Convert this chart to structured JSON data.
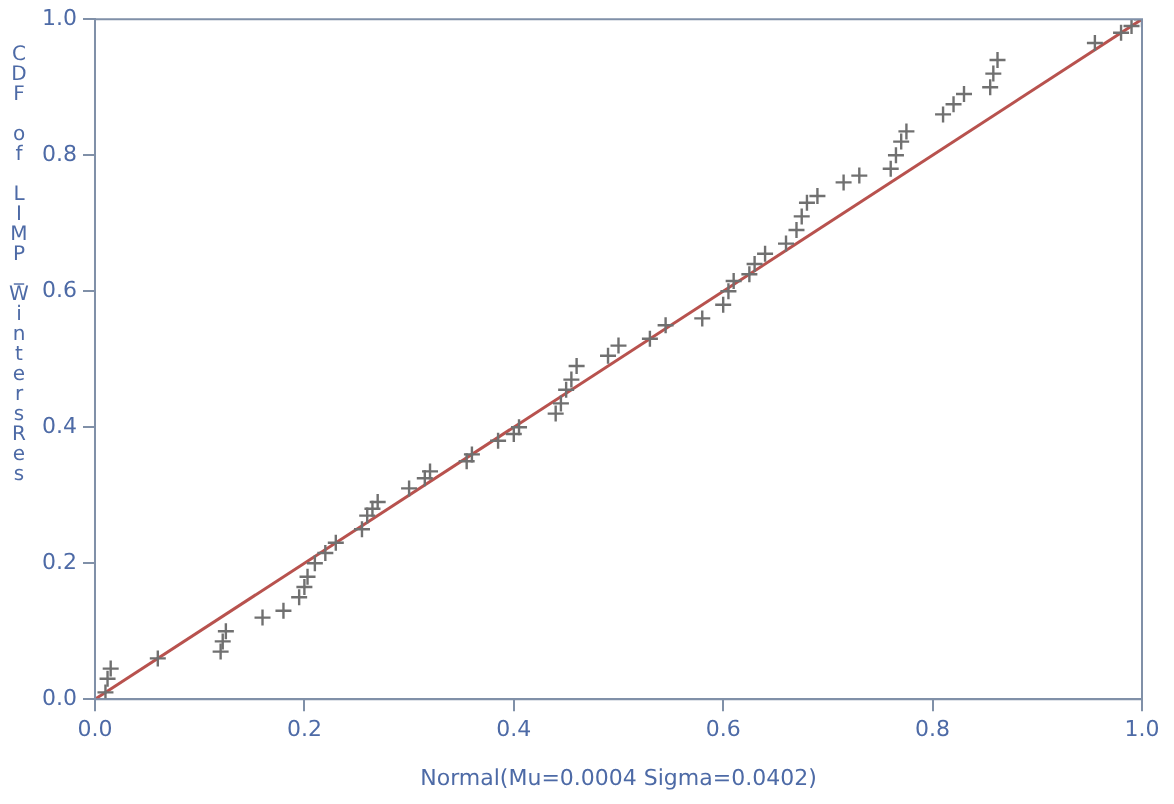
{
  "chart_data": {
    "type": "scatter",
    "xlabel": "Normal(Mu=0.0004 Sigma=0.0402)",
    "ylabel": "CDF of LIMP_WintersRes",
    "xlim": [
      0,
      1
    ],
    "ylim": [
      0,
      1
    ],
    "xticks": [
      {
        "value": 0,
        "label": "0.0"
      },
      {
        "value": 0.2,
        "label": "0.2"
      },
      {
        "value": 0.4,
        "label": "0.4"
      },
      {
        "value": 0.6,
        "label": "0.6"
      },
      {
        "value": 0.8,
        "label": "0.8"
      },
      {
        "value": 1,
        "label": "1.0"
      }
    ],
    "yticks": [
      {
        "value": 0,
        "label": "0.0"
      },
      {
        "value": 0.2,
        "label": "0.2"
      },
      {
        "value": 0.4,
        "label": "0.4"
      },
      {
        "value": 0.6,
        "label": "0.6"
      },
      {
        "value": 0.8,
        "label": "0.8"
      },
      {
        "value": 1,
        "label": "1.0"
      }
    ],
    "grid": false,
    "legend": false,
    "series": [
      {
        "type": "scatter",
        "marker": "cross",
        "color": "#707070",
        "x": [
          0.01,
          0.012,
          0.015,
          0.06,
          0.12,
          0.122,
          0.125,
          0.16,
          0.18,
          0.195,
          0.2,
          0.203,
          0.21,
          0.22,
          0.23,
          0.255,
          0.26,
          0.265,
          0.27,
          0.3,
          0.315,
          0.32,
          0.355,
          0.36,
          0.385,
          0.4,
          0.405,
          0.44,
          0.445,
          0.45,
          0.455,
          0.46,
          0.49,
          0.5,
          0.53,
          0.545,
          0.58,
          0.6,
          0.605,
          0.61,
          0.625,
          0.63,
          0.64,
          0.66,
          0.67,
          0.675,
          0.68,
          0.69,
          0.715,
          0.73,
          0.76,
          0.765,
          0.77,
          0.775,
          0.81,
          0.82,
          0.83,
          0.855,
          0.858,
          0.862,
          0.955,
          0.98,
          0.99,
          1.0
        ],
        "values": [
          0.01,
          0.03,
          0.045,
          0.06,
          0.07,
          0.085,
          0.1,
          0.12,
          0.13,
          0.15,
          0.165,
          0.18,
          0.2,
          0.215,
          0.23,
          0.25,
          0.27,
          0.28,
          0.29,
          0.31,
          0.325,
          0.335,
          0.35,
          0.36,
          0.38,
          0.39,
          0.4,
          0.42,
          0.435,
          0.455,
          0.47,
          0.49,
          0.505,
          0.52,
          0.53,
          0.55,
          0.56,
          0.58,
          0.6,
          0.615,
          0.625,
          0.64,
          0.655,
          0.67,
          0.69,
          0.71,
          0.73,
          0.74,
          0.76,
          0.77,
          0.78,
          0.8,
          0.82,
          0.835,
          0.86,
          0.875,
          0.89,
          0.9,
          0.92,
          0.94,
          0.965,
          0.98,
          0.99,
          1.0
        ]
      },
      {
        "type": "line",
        "marker": "none",
        "color": "#b8524e",
        "x": [
          0,
          1
        ],
        "values": [
          0,
          1
        ]
      }
    ]
  }
}
